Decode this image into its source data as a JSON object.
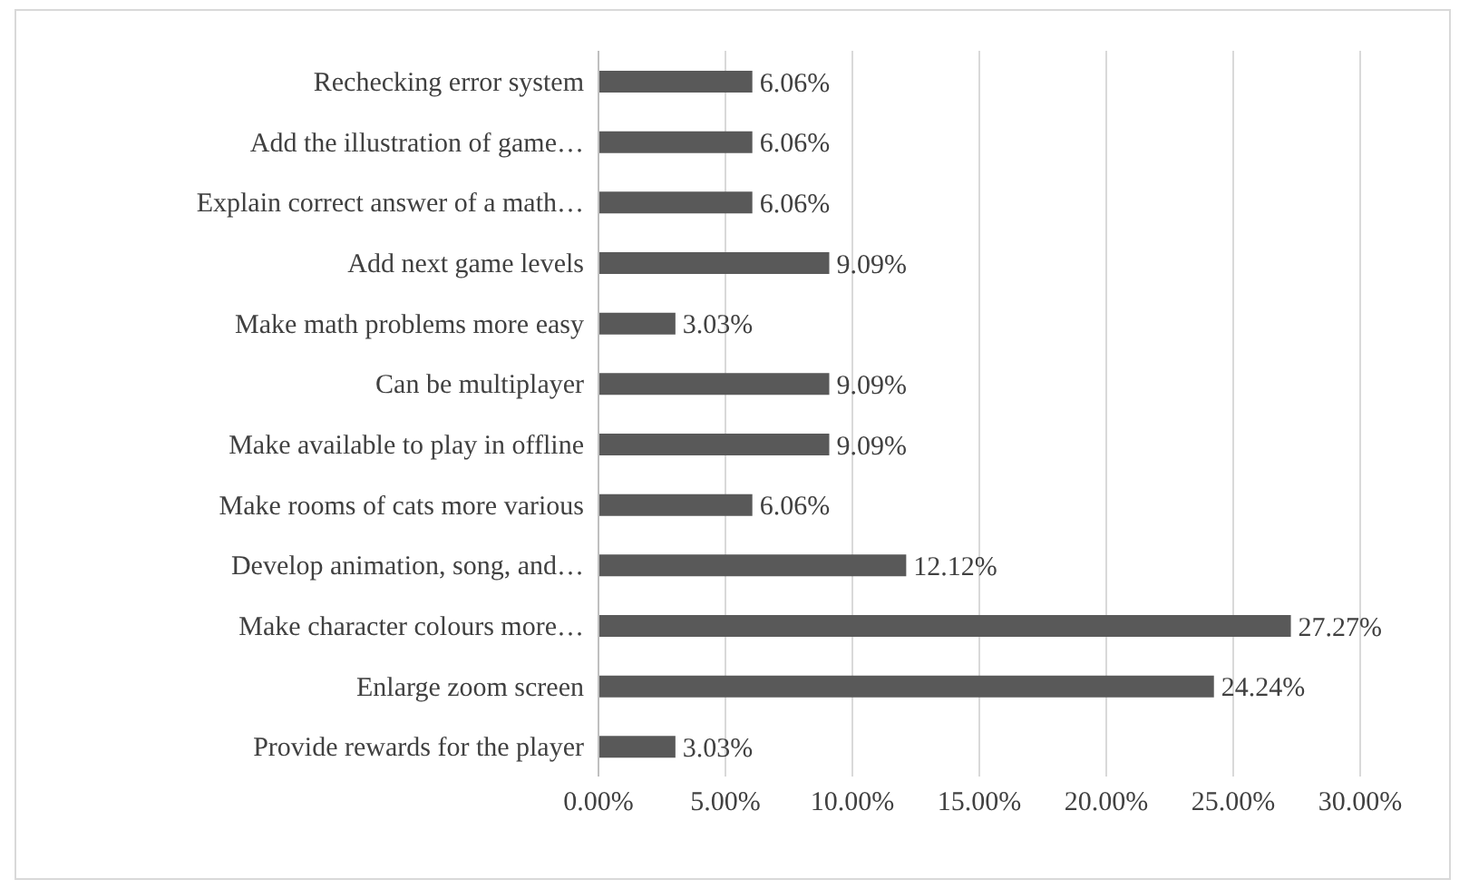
{
  "chart_data": {
    "type": "bar",
    "orientation": "horizontal",
    "categories": [
      "Rechecking error system",
      "Add the illustration of game…",
      "Explain correct answer of a math…",
      "Add next game levels",
      "Make math problems more easy",
      "Can be multiplayer",
      "Make available to play in offline",
      "Make rooms of cats more various",
      "Develop animation, song, and…",
      "Make character colours more…",
      "Enlarge zoom screen",
      "Provide rewards for the player"
    ],
    "values": [
      6.06,
      6.06,
      6.06,
      9.09,
      3.03,
      9.09,
      9.09,
      6.06,
      12.12,
      27.27,
      24.24,
      3.03
    ],
    "value_labels": [
      "6.06%",
      "6.06%",
      "6.06%",
      "9.09%",
      "3.03%",
      "9.09%",
      "9.09%",
      "6.06%",
      "12.12%",
      "27.27%",
      "24.24%",
      "3.03%"
    ],
    "color": "#595959",
    "xlim": [
      0,
      30
    ],
    "xticks": [
      {
        "value": 0,
        "label": "0.00%"
      },
      {
        "value": 5,
        "label": "5.00%"
      },
      {
        "value": 10,
        "label": "10.00%"
      },
      {
        "value": 15,
        "label": "15.00%"
      },
      {
        "value": 20,
        "label": "20.00%"
      },
      {
        "value": 25,
        "label": "25.00%"
      },
      {
        "value": 30,
        "label": "30.00%"
      }
    ],
    "grid": "x",
    "legend": false
  }
}
